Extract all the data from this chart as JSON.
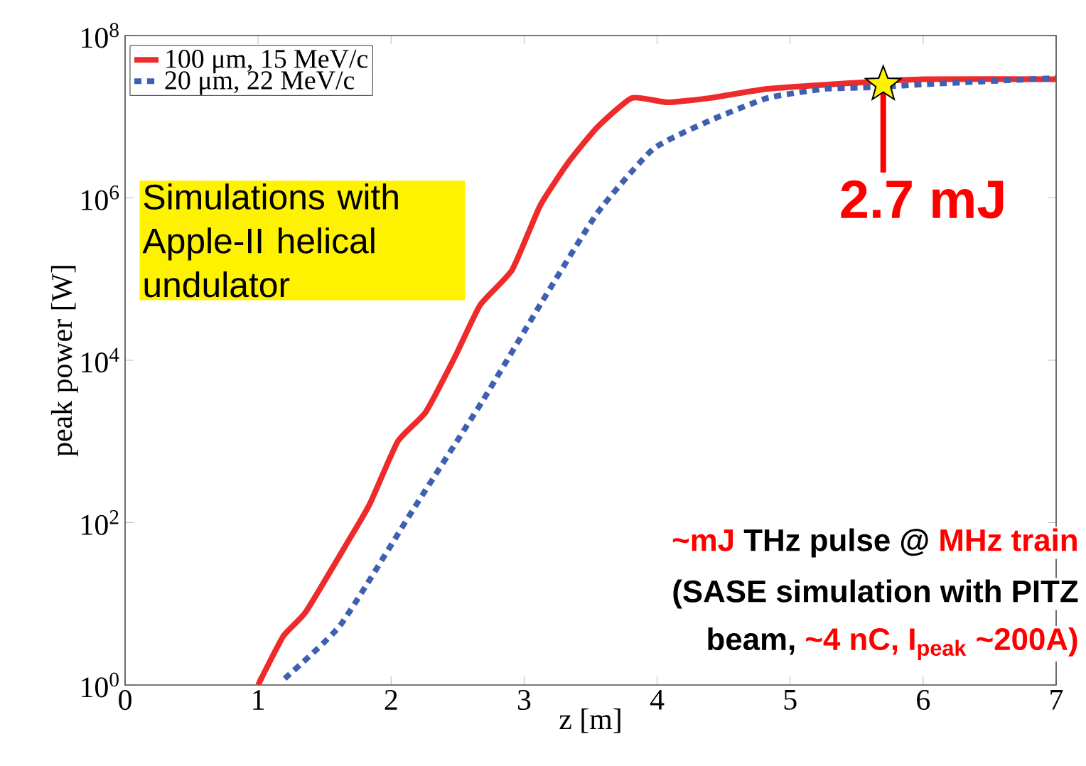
{
  "chart_data": {
    "type": "line",
    "xlabel": "z [m]",
    "ylabel": "peak power [W]",
    "log": "y",
    "xlim": [
      0,
      7
    ],
    "ylim": [
      1,
      100000000
    ],
    "xticks": [
      0,
      1,
      2,
      3,
      4,
      5,
      6,
      7
    ],
    "yticks": [
      {
        "value": 1,
        "label": "10$^{0}$"
      },
      {
        "value": 100,
        "label": "10$^{2}$"
      },
      {
        "value": 10000,
        "label": "10$^{4}$"
      },
      {
        "value": 1000000,
        "label": "10$^{6}$"
      },
      {
        "value": 100000000,
        "label": "10$^{8}$"
      }
    ],
    "grid": false,
    "legend": "top left",
    "marker": "none",
    "series": [
      {
        "name": "100 μm, 15 MeV/c",
        "color": "#ee2a2a",
        "line_style": "solid",
        "x": [
          1.0,
          1.19,
          1.36,
          1.68,
          1.84,
          2.05,
          2.26,
          2.48,
          2.67,
          2.91,
          3.12,
          3.33,
          3.55,
          3.81,
          4.08,
          4.4,
          4.83,
          5.47,
          6.0,
          7.0
        ],
        "values": [
          1,
          4,
          8,
          60,
          170,
          1000,
          2300,
          11000,
          48000,
          130000,
          800000,
          2700000,
          7400000,
          17000000,
          15000000,
          17000000,
          22000000,
          26000000,
          29000000,
          29000000
        ]
      },
      {
        "name": "20 μm, 22 MeV/c",
        "color": "#3f5fb0",
        "line_style": "dotted",
        "x": [
          1.2,
          1.62,
          2.16,
          2.69,
          3.12,
          3.55,
          3.97,
          4.4,
          4.83,
          5.26,
          5.63,
          6.0,
          7.0
        ],
        "values": [
          1.2,
          5.5,
          140,
          3200,
          48000,
          650000,
          4000000,
          9000000,
          17000000,
          22000000,
          23000000,
          25000000,
          30000000
        ]
      },
      {
        "type": "scatter",
        "marker": "star",
        "color": "#fff200",
        "x": [
          5.7
        ],
        "values": [
          25000000
        ]
      }
    ],
    "annotations": [
      "Simulations with Apple-II helical undulator",
      {
        "text": "2.7 mJ",
        "x": 5.7,
        "y": 25000000
      },
      "~mJ",
      "THz pulse @",
      "MHz train",
      "(SASE simulation with PITZ",
      "beam,",
      "~4 nC, I$_{peak}$ ~200A)"
    ]
  }
}
